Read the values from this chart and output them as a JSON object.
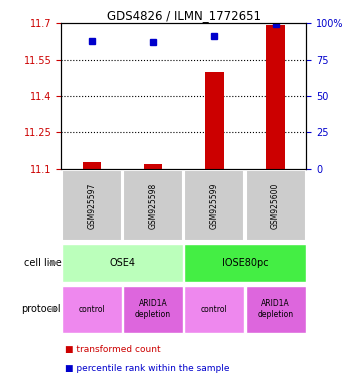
{
  "title": "GDS4826 / ILMN_1772651",
  "samples": [
    "GSM925597",
    "GSM925598",
    "GSM925599",
    "GSM925600"
  ],
  "transformed_counts": [
    11.13,
    11.12,
    11.5,
    11.69
  ],
  "percentile_ranks": [
    88,
    87,
    91,
    99
  ],
  "ylim_left": [
    11.1,
    11.7
  ],
  "ylim_right": [
    0,
    100
  ],
  "yticks_left": [
    11.1,
    11.25,
    11.4,
    11.55,
    11.7
  ],
  "yticks_right": [
    0,
    25,
    50,
    75,
    100
  ],
  "ytick_labels_left": [
    "11.1",
    "11.25",
    "11.4",
    "11.55",
    "11.7"
  ],
  "ytick_labels_right": [
    "0",
    "25",
    "50",
    "75",
    "100%"
  ],
  "dotted_lines": [
    11.25,
    11.4,
    11.55
  ],
  "bar_color": "#cc0000",
  "dot_color": "#0000cc",
  "cell_line_groups": [
    {
      "label": "OSE4",
      "span": [
        0,
        2
      ],
      "color": "#bbffbb"
    },
    {
      "label": "IOSE80pc",
      "span": [
        2,
        4
      ],
      "color": "#44ee44"
    }
  ],
  "protocol_groups": [
    {
      "label": "control",
      "span": [
        0,
        1
      ],
      "color": "#ee88ee"
    },
    {
      "label": "ARID1A\ndepletion",
      "span": [
        1,
        2
      ],
      "color": "#dd66dd"
    },
    {
      "label": "control",
      "span": [
        2,
        3
      ],
      "color": "#ee88ee"
    },
    {
      "label": "ARID1A\ndepletion",
      "span": [
        3,
        4
      ],
      "color": "#dd66dd"
    }
  ],
  "legend_bar_color": "#cc0000",
  "legend_dot_color": "#0000cc",
  "legend_bar_label": "transformed count",
  "legend_dot_label": "percentile rank within the sample",
  "sample_box_color": "#cccccc",
  "left_axis_color": "#cc0000",
  "right_axis_color": "#0000cc",
  "cell_line_label": "cell line",
  "protocol_label": "protocol"
}
